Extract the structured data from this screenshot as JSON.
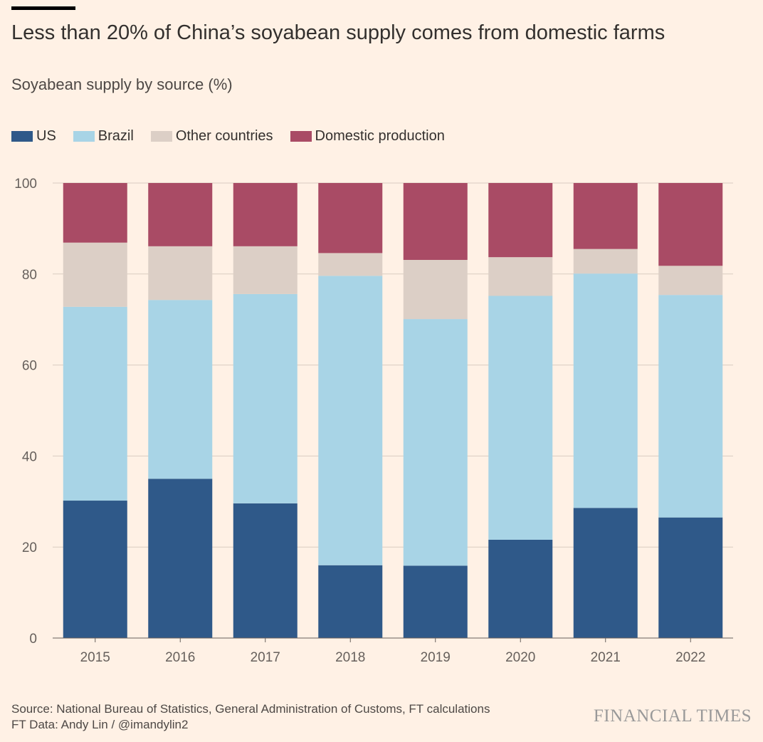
{
  "header": {
    "title": "Less than 20% of China’s soyabean supply comes from domestic farms",
    "subtitle": "Soyabean supply by source (%)"
  },
  "legend": [
    {
      "label": "US",
      "color": "#2F5989"
    },
    {
      "label": "Brazil",
      "color": "#A8D4E6"
    },
    {
      "label": "Other countries",
      "color": "#DCCFC6"
    },
    {
      "label": "Domestic production",
      "color": "#A94B65"
    }
  ],
  "chart_data": {
    "type": "bar",
    "stacked": true,
    "categories": [
      "2015",
      "2016",
      "2017",
      "2018",
      "2019",
      "2020",
      "2021",
      "2022"
    ],
    "series": [
      {
        "name": "US",
        "color": "#2F5989",
        "values": [
          30.2,
          35.0,
          29.6,
          16.0,
          15.9,
          21.6,
          28.6,
          26.5
        ]
      },
      {
        "name": "Brazil",
        "color": "#A8D4E6",
        "values": [
          42.6,
          39.3,
          46.0,
          63.6,
          54.2,
          53.6,
          51.5,
          48.9
        ]
      },
      {
        "name": "Other countries",
        "color": "#DCCFC6",
        "values": [
          14.1,
          11.8,
          10.5,
          5.0,
          13.0,
          8.5,
          5.4,
          6.4
        ]
      },
      {
        "name": "Domestic production",
        "color": "#A94B65",
        "values": [
          13.1,
          13.9,
          13.9,
          15.4,
          16.9,
          16.3,
          14.5,
          18.2
        ]
      }
    ],
    "ylim": [
      0,
      100
    ],
    "yticks": [
      0,
      20,
      40,
      60,
      80,
      100
    ],
    "grid": true,
    "legend_position": "top-left",
    "xlabel": "",
    "ylabel": ""
  },
  "footer": {
    "source": "Source: National Bureau of Statistics, General Administration of Customs, FT calculations",
    "credit": "FT Data: Andy Lin / @imandylin2",
    "brand": "FINANCIAL TIMES"
  }
}
